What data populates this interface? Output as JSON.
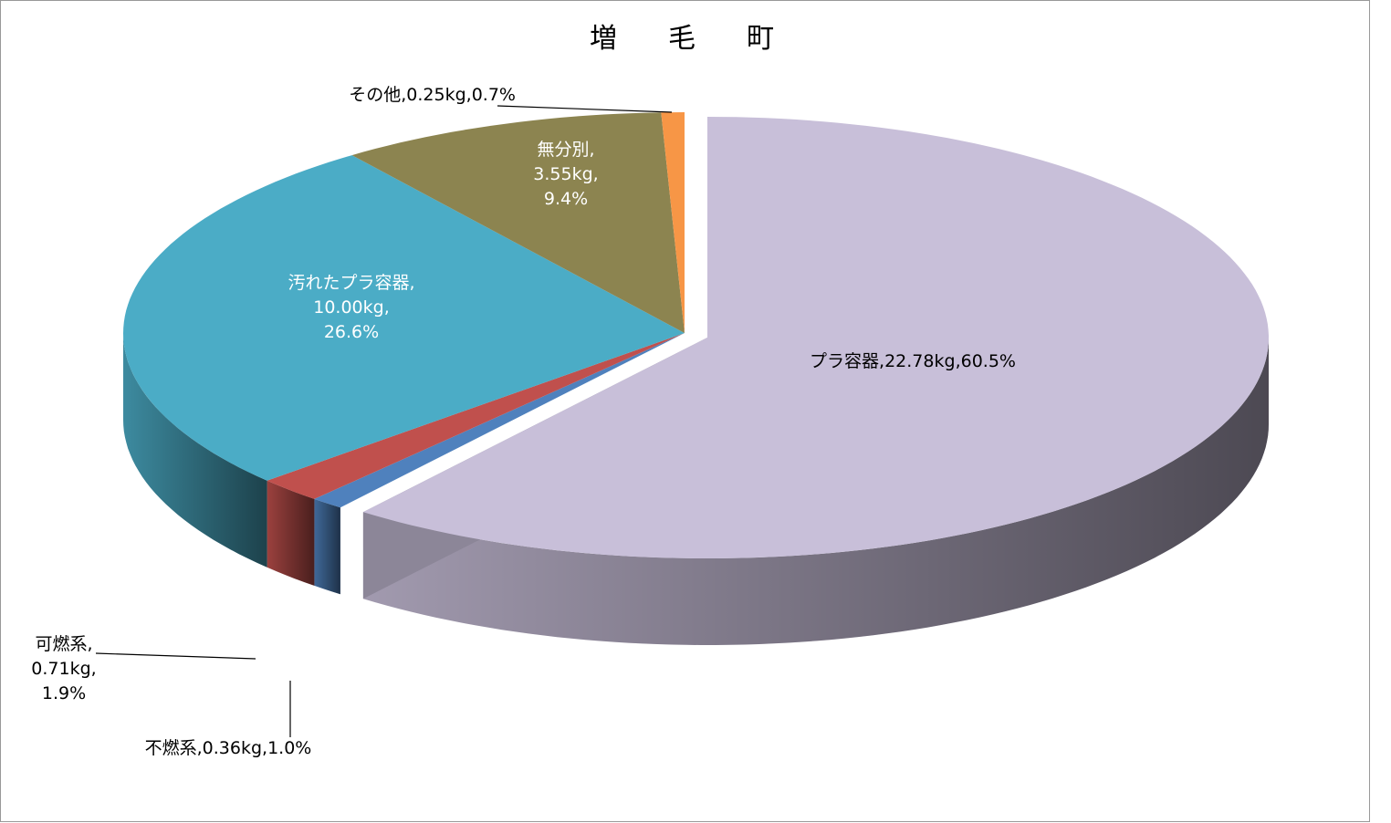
{
  "chart_data": {
    "type": "pie3d",
    "title": "増毛町",
    "separator": ",",
    "categories": [
      "プラ容器",
      "不燃系",
      "可燃系",
      "汚れたプラ容器",
      "無分別",
      "その他"
    ],
    "values": [
      22.78,
      0.36,
      0.71,
      10.0,
      3.55,
      0.25
    ],
    "value_labels": [
      "22.78kg",
      "0.36kg",
      "0.71kg",
      "10.00kg",
      "3.55kg",
      "0.25kg"
    ],
    "percents": [
      60.5,
      1.0,
      1.9,
      26.6,
      9.4,
      0.7
    ],
    "percent_labels": [
      "60.5%",
      "1.0%",
      "1.9%",
      "26.6%",
      "9.4%",
      "0.7%"
    ],
    "colors": [
      "#c8bfd9",
      "#4f81bd",
      "#c0504d",
      "#4bacc6",
      "#8c8450",
      "#f79646"
    ]
  }
}
